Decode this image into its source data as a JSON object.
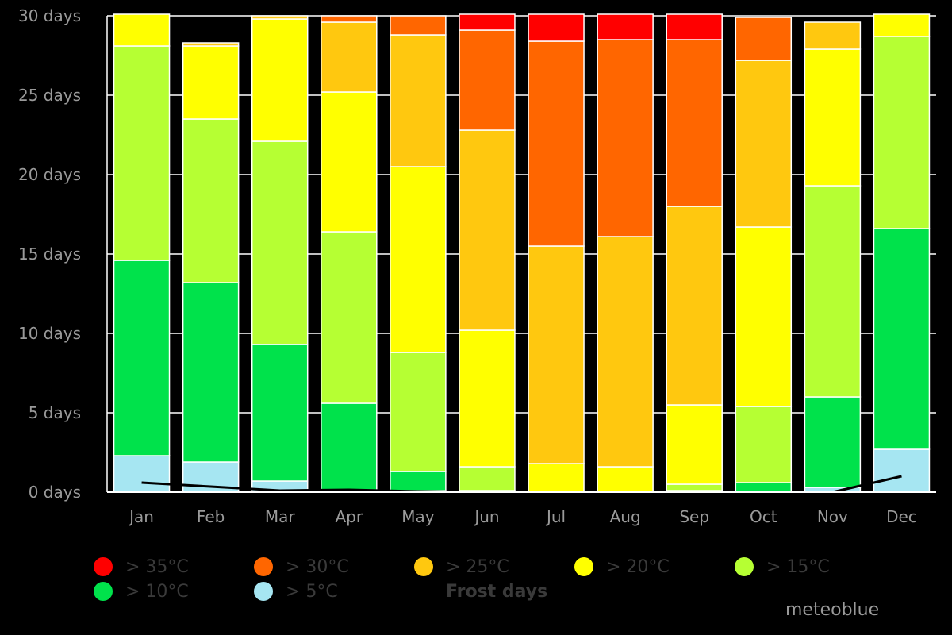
{
  "chart_data": {
    "type": "bar",
    "stacked": true,
    "categories": [
      "Jan",
      "Feb",
      "Mar",
      "Apr",
      "May",
      "Jun",
      "Jul",
      "Aug",
      "Sep",
      "Oct",
      "Nov",
      "Dec"
    ],
    "y_ticks": [
      "0 days",
      "5 days",
      "10 days",
      "15 days",
      "20 days",
      "25 days",
      "30 days"
    ],
    "ylim": [
      0,
      30
    ],
    "grid": true,
    "series": [
      {
        "name": "> 5°C",
        "color": "#a6e6f2",
        "values": [
          2.3,
          1.9,
          0.7,
          0.1,
          0.1,
          0.0,
          0.0,
          0.0,
          0.0,
          0.0,
          0.3,
          2.7
        ]
      },
      {
        "name": "> 10°C",
        "color": "#00e24b",
        "values": [
          12.3,
          11.3,
          8.6,
          5.5,
          1.2,
          0.1,
          0.0,
          0.0,
          0.1,
          0.6,
          5.7,
          13.9
        ]
      },
      {
        "name": "> 15°C",
        "color": "#b6ff33",
        "values": [
          13.5,
          10.3,
          12.8,
          10.8,
          7.5,
          1.5,
          0.0,
          0.0,
          0.4,
          4.8,
          13.3,
          12.1
        ]
      },
      {
        "name": "> 20°C",
        "color": "#ffff00",
        "values": [
          2.0,
          4.6,
          7.7,
          8.8,
          11.7,
          8.6,
          1.8,
          1.6,
          5.0,
          11.3,
          8.6,
          1.4
        ]
      },
      {
        "name": "> 25°C",
        "color": "#ffc80f",
        "values": [
          0.0,
          0.2,
          0.2,
          4.4,
          8.3,
          12.6,
          13.7,
          14.5,
          12.5,
          10.5,
          1.7,
          0.0
        ]
      },
      {
        "name": "> 30°C",
        "color": "#ff6600",
        "values": [
          0.0,
          0.0,
          0.0,
          0.4,
          1.2,
          6.3,
          12.9,
          12.4,
          10.5,
          2.7,
          0.0,
          0.0
        ]
      },
      {
        "name": "> 35°C",
        "color": "#ff0000",
        "values": [
          0.0,
          0.0,
          0.0,
          0.0,
          0.0,
          1.0,
          1.7,
          1.6,
          1.6,
          0.0,
          0.0,
          0.0
        ]
      }
    ],
    "frost_days": {
      "name": "Frost days",
      "color": "#000000",
      "values": [
        0.6,
        0.35,
        0.1,
        0.15,
        0.05,
        0.0,
        0.0,
        0.0,
        0.0,
        0.0,
        0.0,
        1.0
      ]
    }
  },
  "legend": {
    "items": [
      {
        "label": "> 35°C",
        "color": "#ff0000"
      },
      {
        "label": "> 30°C",
        "color": "#ff6600"
      },
      {
        "label": "> 25°C",
        "color": "#ffc80f"
      },
      {
        "label": "> 20°C",
        "color": "#ffff00"
      },
      {
        "label": "> 15°C",
        "color": "#b6ff33"
      },
      {
        "label": "> 10°C",
        "color": "#00e24b"
      },
      {
        "label": "> 5°C",
        "color": "#a6e6f2"
      }
    ],
    "frost_label": "Frost days"
  },
  "brand": "meteoblue"
}
